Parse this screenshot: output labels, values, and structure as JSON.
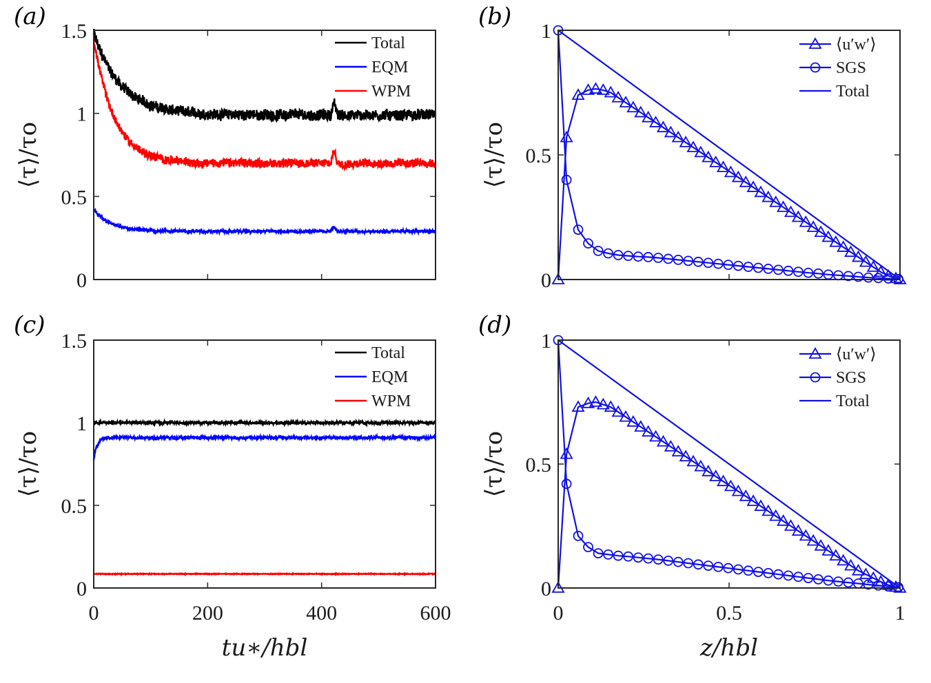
{
  "panels": {
    "a": {
      "label": "(a)"
    },
    "b": {
      "label": "(b)"
    },
    "c": {
      "label": "(c)"
    },
    "d": {
      "label": "(d)"
    }
  },
  "axis_text": {
    "left_ylabel": "⟨τ⟩/τo",
    "time_xlabel": "tu∗/hbl",
    "z_xlabel": "z/hbl"
  },
  "colors": {
    "total": "#000000",
    "eqm": "#0000ff",
    "wpm": "#ff0000",
    "profile": "#1010e6"
  },
  "chart_data": [
    {
      "id": "a",
      "type": "line",
      "xlim": [
        0,
        600
      ],
      "ylim": [
        0,
        1.5
      ],
      "xticks": [],
      "yticks": [
        "0",
        "0.5",
        "1",
        "1.5"
      ],
      "legend_position": "top-right",
      "series": [
        {
          "name": "Total",
          "color": "#000000",
          "mean": 0.99,
          "initial": 1.48,
          "settle": 0.08,
          "noise": 0.045
        },
        {
          "name": "EQM",
          "color": "#0000ff",
          "mean": 0.29,
          "initial": 0.42,
          "settle": 0.05,
          "noise": 0.012
        },
        {
          "name": "WPM",
          "color": "#ff0000",
          "mean": 0.7,
          "initial": 1.45,
          "settle": 0.06,
          "noise": 0.035
        }
      ]
    },
    {
      "id": "b",
      "type": "line",
      "xlim": [
        0,
        1
      ],
      "ylim": [
        0,
        1
      ],
      "xticks": [],
      "yticks": [
        "0",
        "0.5",
        "1"
      ],
      "legend_position": "top-right",
      "series": [
        {
          "name": "⟨u′w′⟩",
          "marker": "triangle",
          "x": [
            0,
            0.0244,
            0.0585,
            0.0878,
            0.1098,
            0.1317,
            0.1537,
            0.1756,
            0.1976,
            0.2195,
            0.2415,
            0.2634,
            0.2854,
            0.3073,
            0.3293,
            0.3512,
            0.3732,
            0.3951,
            0.4171,
            0.439,
            0.461,
            0.4829,
            0.5049,
            0.5268,
            0.5488,
            0.5707,
            0.5927,
            0.6146,
            0.6366,
            0.6585,
            0.6805,
            0.7024,
            0.7244,
            0.7463,
            0.7683,
            0.7902,
            0.8122,
            0.8341,
            0.8561,
            0.878,
            0.9,
            0.922,
            0.9439,
            0.9659,
            0.9878,
            1.0
          ],
          "y": [
            0,
            0.57,
            0.74,
            0.76,
            0.765,
            0.76,
            0.75,
            0.73,
            0.71,
            0.69,
            0.67,
            0.65,
            0.63,
            0.61,
            0.59,
            0.57,
            0.55,
            0.53,
            0.51,
            0.49,
            0.47,
            0.45,
            0.43,
            0.41,
            0.39,
            0.37,
            0.35,
            0.33,
            0.31,
            0.29,
            0.27,
            0.25,
            0.23,
            0.21,
            0.19,
            0.17,
            0.15,
            0.13,
            0.11,
            0.09,
            0.07,
            0.05,
            0.03,
            0.015,
            0.005,
            0
          ]
        },
        {
          "name": "SGS",
          "marker": "circle",
          "x": [
            0,
            0.0244,
            0.0585,
            0.0878,
            0.1171,
            0.1463,
            0.1756,
            0.2049,
            0.2341,
            0.2634,
            0.2927,
            0.322,
            0.3512,
            0.3805,
            0.4098,
            0.439,
            0.4683,
            0.4976,
            0.5268,
            0.5561,
            0.5854,
            0.6146,
            0.6439,
            0.6732,
            0.7024,
            0.7317,
            0.761,
            0.7902,
            0.8195,
            0.8488,
            0.878,
            0.9073,
            0.9366,
            0.9659,
            0.9951
          ],
          "y": [
            1.0,
            0.4,
            0.2,
            0.145,
            0.115,
            0.105,
            0.098,
            0.095,
            0.092,
            0.09,
            0.087,
            0.083,
            0.079,
            0.075,
            0.071,
            0.067,
            0.063,
            0.059,
            0.055,
            0.051,
            0.047,
            0.043,
            0.039,
            0.035,
            0.031,
            0.027,
            0.024,
            0.02,
            0.017,
            0.014,
            0.011,
            0.008,
            0.006,
            0.004,
            0.002
          ]
        },
        {
          "name": "Total",
          "marker": "none",
          "x": [
            0,
            1
          ],
          "y": [
            1.0,
            0
          ]
        }
      ]
    },
    {
      "id": "c",
      "type": "line",
      "xlim": [
        0,
        600
      ],
      "ylim": [
        0,
        1.5
      ],
      "xticks": [
        "0",
        "200",
        "400",
        "600"
      ],
      "yticks": [
        "0",
        "0.5",
        "1",
        "1.5"
      ],
      "legend_position": "top-right",
      "series": [
        {
          "name": "Total",
          "color": "#000000",
          "mean": 1.0,
          "initial": 1.0,
          "settle": 0.01,
          "noise": 0.012
        },
        {
          "name": "EQM",
          "color": "#0000ff",
          "mean": 0.91,
          "initial": 0.78,
          "settle": 0.01,
          "noise": 0.012
        },
        {
          "name": "WPM",
          "color": "#ff0000",
          "mean": 0.085,
          "initial": 0.085,
          "settle": 0.01,
          "noise": 0.003
        }
      ]
    },
    {
      "id": "d",
      "type": "line",
      "xlim": [
        0,
        1
      ],
      "ylim": [
        0,
        1
      ],
      "xticks": [
        "0",
        "0.5",
        "1"
      ],
      "yticks": [
        "0",
        "0.5",
        "1"
      ],
      "legend_position": "top-right",
      "series": [
        {
          "name": "⟨u′w′⟩",
          "marker": "triangle",
          "x": [
            0,
            0.0244,
            0.0585,
            0.0878,
            0.1098,
            0.1317,
            0.1537,
            0.1756,
            0.1976,
            0.2195,
            0.2415,
            0.2634,
            0.2854,
            0.3073,
            0.3293,
            0.3512,
            0.3732,
            0.3951,
            0.4171,
            0.439,
            0.461,
            0.4829,
            0.5049,
            0.5268,
            0.5488,
            0.5707,
            0.5927,
            0.6146,
            0.6366,
            0.6585,
            0.6805,
            0.7024,
            0.7244,
            0.7463,
            0.7683,
            0.7902,
            0.8122,
            0.8341,
            0.8561,
            0.878,
            0.9,
            0.922,
            0.9439,
            0.9659,
            0.9878,
            1.0
          ],
          "y": [
            0,
            0.54,
            0.73,
            0.745,
            0.75,
            0.74,
            0.73,
            0.71,
            0.69,
            0.67,
            0.65,
            0.63,
            0.61,
            0.59,
            0.57,
            0.55,
            0.53,
            0.51,
            0.49,
            0.47,
            0.45,
            0.43,
            0.41,
            0.39,
            0.37,
            0.35,
            0.33,
            0.31,
            0.29,
            0.27,
            0.25,
            0.23,
            0.21,
            0.19,
            0.17,
            0.15,
            0.13,
            0.11,
            0.09,
            0.07,
            0.055,
            0.04,
            0.025,
            0.012,
            0.004,
            0
          ]
        },
        {
          "name": "SGS",
          "marker": "circle",
          "x": [
            0,
            0.0244,
            0.0585,
            0.0878,
            0.1171,
            0.1463,
            0.1756,
            0.2049,
            0.2341,
            0.2634,
            0.2927,
            0.322,
            0.3512,
            0.3805,
            0.4098,
            0.439,
            0.4683,
            0.4976,
            0.5268,
            0.5561,
            0.5854,
            0.6146,
            0.6439,
            0.6732,
            0.7024,
            0.7317,
            0.761,
            0.7902,
            0.8195,
            0.8488,
            0.878,
            0.9073,
            0.9366,
            0.9659,
            0.9951
          ],
          "y": [
            1.0,
            0.42,
            0.21,
            0.165,
            0.14,
            0.135,
            0.13,
            0.127,
            0.123,
            0.119,
            0.115,
            0.11,
            0.105,
            0.1,
            0.095,
            0.09,
            0.085,
            0.08,
            0.075,
            0.07,
            0.065,
            0.06,
            0.055,
            0.05,
            0.045,
            0.04,
            0.035,
            0.03,
            0.026,
            0.022,
            0.018,
            0.014,
            0.01,
            0.006,
            0.003
          ]
        },
        {
          "name": "Total",
          "marker": "none",
          "x": [
            0,
            1
          ],
          "y": [
            1.0,
            0
          ]
        }
      ]
    }
  ]
}
